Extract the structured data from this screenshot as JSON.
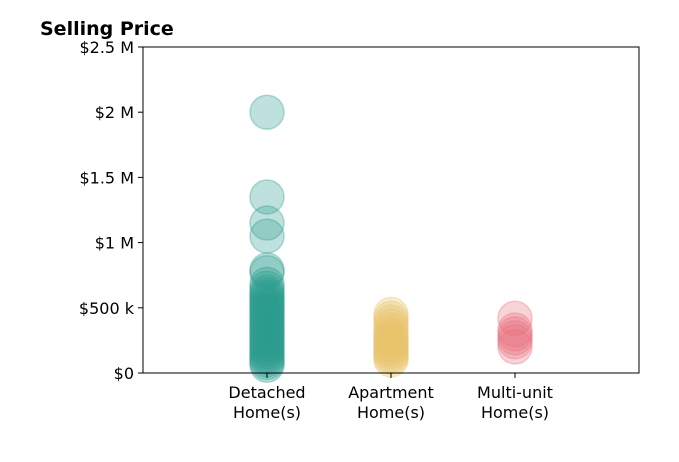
{
  "chart_data": {
    "type": "scatter",
    "title": "Selling Price",
    "xlabel": "",
    "ylabel": "",
    "ylim": [
      0,
      2500000
    ],
    "y_ticks": [
      {
        "value": 0,
        "label": "$0"
      },
      {
        "value": 500000,
        "label": "$500 k"
      },
      {
        "value": 1000000,
        "label": "$1 M"
      },
      {
        "value": 1500000,
        "label": "$1.5 M"
      },
      {
        "value": 2000000,
        "label": "$2 M"
      },
      {
        "value": 2500000,
        "label": "$2.5 M"
      }
    ],
    "categories": [
      [
        "Detached",
        "Home(s)"
      ],
      [
        "Apartment",
        "Home(s)"
      ],
      [
        "Multi-unit",
        "Home(s)"
      ]
    ],
    "grid": false,
    "series": [
      {
        "category_index": 0,
        "color": "#2a9d8f",
        "values": [
          2000000,
          1350000,
          1150000,
          1050000,
          790000,
          770000,
          680000,
          650000,
          620000,
          600000,
          580000,
          560000,
          540000,
          520000,
          500000,
          480000,
          460000,
          440000,
          420000,
          400000,
          380000,
          360000,
          340000,
          320000,
          300000,
          280000,
          260000,
          240000,
          220000,
          200000,
          180000,
          160000,
          140000,
          120000,
          100000,
          80000,
          60000
        ]
      },
      {
        "category_index": 1,
        "color": "#e9c46a",
        "values": [
          450000,
          420000,
          390000,
          360000,
          330000,
          300000,
          280000,
          260000,
          240000,
          220000,
          200000,
          180000,
          160000,
          140000,
          120000,
          100000
        ]
      },
      {
        "category_index": 2,
        "color": "#e76f7f",
        "values": [
          420000,
          330000,
          300000,
          270000,
          240000,
          200000
        ]
      }
    ]
  }
}
